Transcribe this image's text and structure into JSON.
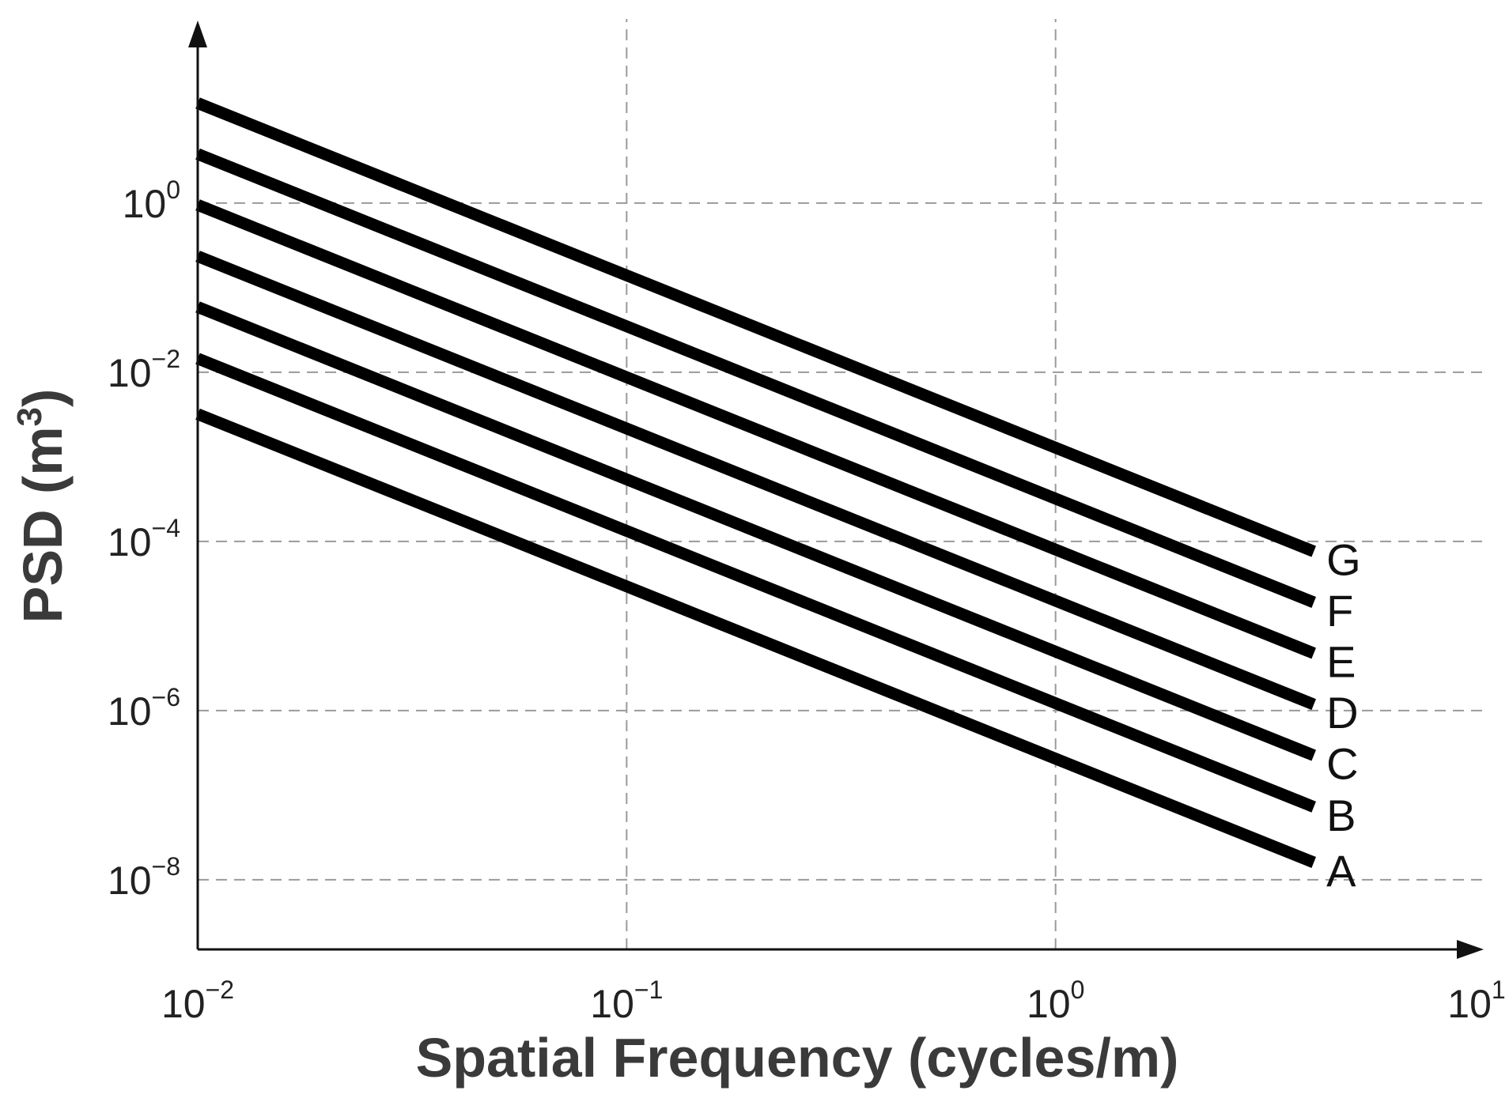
{
  "chart_data": {
    "type": "line",
    "xlabel": "Spatial Frequency (cycles/m)",
    "ylabel": {
      "prefix": "PSD (m",
      "sup": "3",
      "suffix": ")"
    },
    "xscale": "log",
    "yscale": "log",
    "xlim": [
      0.01,
      10
    ],
    "ylim": [
      1.5e-09,
      150
    ],
    "grid": true,
    "grid_style": "dashed",
    "x_ticks": [
      {
        "base": "10",
        "exp": "−2",
        "value": 0.01
      },
      {
        "base": "10",
        "exp": "−1",
        "value": 0.1
      },
      {
        "base": "10",
        "exp": "0",
        "value": 1
      },
      {
        "base": "10",
        "exp": "1",
        "value": 10
      }
    ],
    "y_ticks": [
      {
        "base": "10",
        "exp": "0",
        "value": 1
      },
      {
        "base": "10",
        "exp": "−2",
        "value": 0.01
      },
      {
        "base": "10",
        "exp": "−4",
        "value": 0.0001
      },
      {
        "base": "10",
        "exp": "−6",
        "value": 1e-06
      },
      {
        "base": "10",
        "exp": "−8",
        "value": 1e-08
      }
    ],
    "series": [
      {
        "name": "A",
        "x": [
          0.01,
          4
        ],
        "y": [
          0.0032,
          1.6e-08
        ]
      },
      {
        "name": "B",
        "x": [
          0.01,
          4
        ],
        "y": [
          0.0145,
          7.25e-08
        ]
      },
      {
        "name": "C",
        "x": [
          0.01,
          4
        ],
        "y": [
          0.059,
          2.95e-07
        ]
      },
      {
        "name": "D",
        "x": [
          0.01,
          4
        ],
        "y": [
          0.235,
          1.18e-06
        ]
      },
      {
        "name": "E",
        "x": [
          0.01,
          4
        ],
        "y": [
          0.95,
          4.75e-06
        ]
      },
      {
        "name": "F",
        "x": [
          0.01,
          4
        ],
        "y": [
          3.8,
          1.9e-05
        ]
      },
      {
        "name": "G",
        "x": [
          0.01,
          4
        ],
        "y": [
          15.2,
          7.6e-05
        ]
      }
    ],
    "colors": {
      "line": "#000000",
      "grid": "#9a9a9a",
      "axis": "#111111"
    }
  }
}
